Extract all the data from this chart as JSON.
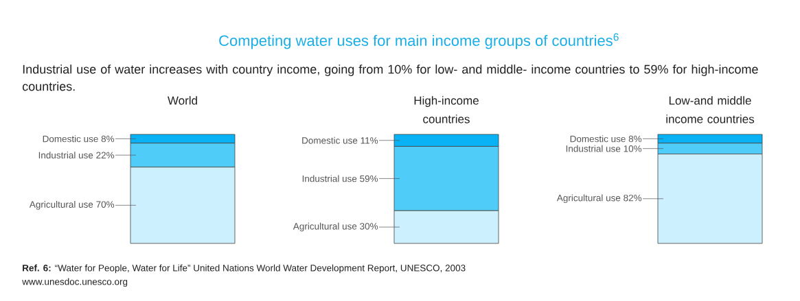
{
  "chart_data": {
    "type": "bar",
    "stacked": true,
    "title": "Competing water uses for main income groups of countries$^{6}$",
    "subtitle": "Industrial use of water increases with country income, going from 10% for low- and middle- income countries to 59% for high-income countries.",
    "categories": [
      "World",
      "High-income countries",
      "Low-and middle income countries"
    ],
    "series": [
      {
        "color": "#ccf0fd",
        "values": [
          70,
          30,
          82
        ],
        "value_labels": [
          "Agricultural use 70%",
          "Agricultural use 30%",
          "Agricultural use 82%"
        ]
      },
      {
        "color": "#50ccf8",
        "values": [
          22,
          59,
          10
        ],
        "value_labels": [
          "Industrial use 22%",
          "Industrial use 59%",
          "Industrial use 10%"
        ]
      },
      {
        "color": "#08b2f5",
        "values": [
          8,
          11,
          8
        ],
        "value_labels": [
          "Domestic use 8%",
          "Domestic use 11%",
          "Domestic use 8%"
        ]
      }
    ],
    "annotations": [
      "**Ref. 6:** “Water for People, Water for Life” United Nations World Water Development Report, UNESCO, 2003",
      "www.unesdoc.unesco.org"
    ]
  }
}
